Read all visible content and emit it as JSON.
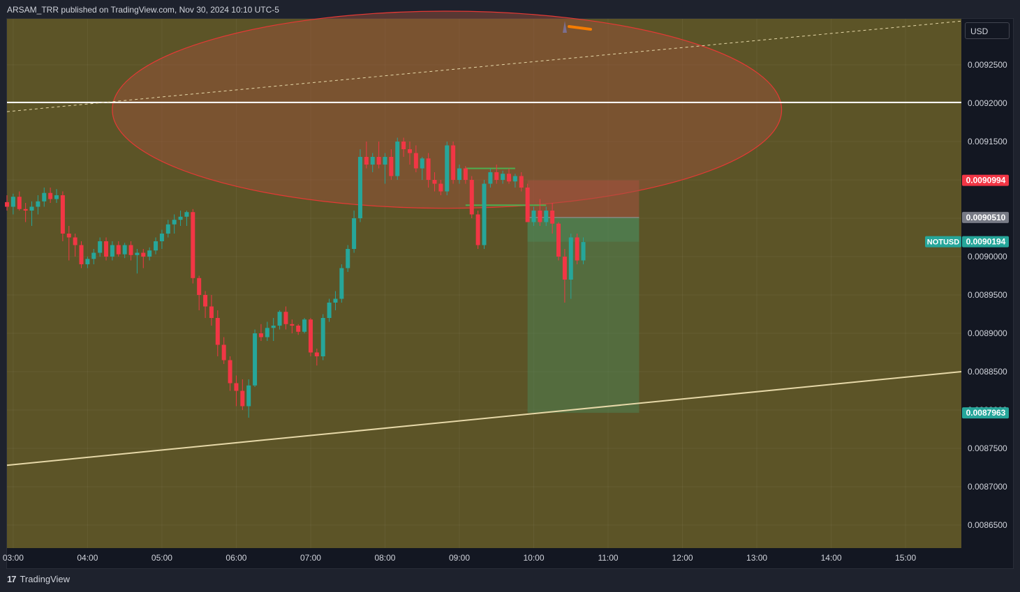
{
  "header": {
    "text": "ARSAM_TRR published on TradingView.com, Nov 30, 2024 10:10 UTC-5"
  },
  "footer": {
    "logo": "17",
    "brand": "TradingView"
  },
  "currency_button": {
    "label": "USD"
  },
  "colors": {
    "up": "#26a69a",
    "down": "#f23645",
    "background": "#5c5427",
    "ellipse_stroke": "#e53935",
    "ellipse_fill": "#a0523c",
    "horizontal_line": "#ffffff",
    "trendline": "#e6d8a8",
    "target_zone": "#4c8a5c",
    "stop_zone": "#a65040",
    "last_price_tag": "#26a69a",
    "stop_tag": "#f23645",
    "entry_tag": "#787b86",
    "arrow": "#f57c00"
  },
  "price_tags": {
    "stop": "0.0090994",
    "entry": "0.0090510",
    "symbol": "NOTUSD",
    "last": "0.0090194",
    "target": "0.0087963"
  },
  "chart_data": {
    "type": "candlestick",
    "symbol": "NOTUSD",
    "interval": "5m",
    "x_range": [
      "02:55",
      "15:45"
    ],
    "y_range": [
      0.00862,
      0.00931
    ],
    "x_ticks": [
      "03:00",
      "04:00",
      "05:00",
      "06:00",
      "07:00",
      "08:00",
      "09:00",
      "10:00",
      "11:00",
      "12:00",
      "13:00",
      "14:00",
      "15:00"
    ],
    "y_ticks": [
      "0.0086500",
      "0.0087000",
      "0.0087500",
      "0.0088000",
      "0.0088500",
      "0.0089000",
      "0.0089500",
      "0.0090000",
      "0.0090500",
      "0.0091000",
      "0.0091500",
      "0.0092000",
      "0.0092500"
    ],
    "candles": [
      {
        "t": "02:55",
        "o": 0.009071,
        "h": 0.00908,
        "l": 0.00906,
        "c": 0.009065
      },
      {
        "t": "03:00",
        "o": 0.009065,
        "h": 0.009082,
        "l": 0.009055,
        "c": 0.009078
      },
      {
        "t": "03:05",
        "o": 0.009078,
        "h": 0.009085,
        "l": 0.00906,
        "c": 0.009062
      },
      {
        "t": "03:10",
        "o": 0.009062,
        "h": 0.00907,
        "l": 0.009045,
        "c": 0.00906
      },
      {
        "t": "03:15",
        "o": 0.00906,
        "h": 0.009072,
        "l": 0.00904,
        "c": 0.009065
      },
      {
        "t": "03:20",
        "o": 0.009065,
        "h": 0.00908,
        "l": 0.009055,
        "c": 0.009072
      },
      {
        "t": "03:25",
        "o": 0.009072,
        "h": 0.00909,
        "l": 0.009065,
        "c": 0.009083
      },
      {
        "t": "03:30",
        "o": 0.009083,
        "h": 0.00909,
        "l": 0.00907,
        "c": 0.009075
      },
      {
        "t": "03:35",
        "o": 0.009075,
        "h": 0.009088,
        "l": 0.00907,
        "c": 0.00908
      },
      {
        "t": "03:40",
        "o": 0.00908,
        "h": 0.009085,
        "l": 0.00902,
        "c": 0.00903
      },
      {
        "t": "03:45",
        "o": 0.00903,
        "h": 0.00904,
        "l": 0.008995,
        "c": 0.009025
      },
      {
        "t": "03:50",
        "o": 0.009025,
        "h": 0.00903,
        "l": 0.009,
        "c": 0.009015
      },
      {
        "t": "03:55",
        "o": 0.009015,
        "h": 0.00902,
        "l": 0.008985,
        "c": 0.00899
      },
      {
        "t": "04:00",
        "o": 0.00899,
        "h": 0.009,
        "l": 0.008985,
        "c": 0.008997
      },
      {
        "t": "04:05",
        "o": 0.008997,
        "h": 0.00901,
        "l": 0.00899,
        "c": 0.009005
      },
      {
        "t": "04:10",
        "o": 0.009005,
        "h": 0.009025,
        "l": 0.009,
        "c": 0.00902
      },
      {
        "t": "04:15",
        "o": 0.00902,
        "h": 0.009025,
        "l": 0.008995,
        "c": 0.009
      },
      {
        "t": "04:20",
        "o": 0.009,
        "h": 0.00902,
        "l": 0.008995,
        "c": 0.009015
      },
      {
        "t": "04:25",
        "o": 0.009015,
        "h": 0.00902,
        "l": 0.009,
        "c": 0.009003
      },
      {
        "t": "04:30",
        "o": 0.009003,
        "h": 0.009018,
        "l": 0.008998,
        "c": 0.009015
      },
      {
        "t": "04:35",
        "o": 0.009015,
        "h": 0.00902,
        "l": 0.008995,
        "c": 0.009002
      },
      {
        "t": "04:40",
        "o": 0.009002,
        "h": 0.00901,
        "l": 0.008978,
        "c": 0.009005
      },
      {
        "t": "04:45",
        "o": 0.009005,
        "h": 0.00901,
        "l": 0.008985,
        "c": 0.009
      },
      {
        "t": "04:50",
        "o": 0.009,
        "h": 0.009012,
        "l": 0.008995,
        "c": 0.009008
      },
      {
        "t": "04:55",
        "o": 0.009008,
        "h": 0.009025,
        "l": 0.009003,
        "c": 0.00902
      },
      {
        "t": "05:00",
        "o": 0.00902,
        "h": 0.009035,
        "l": 0.00901,
        "c": 0.00903
      },
      {
        "t": "05:05",
        "o": 0.00903,
        "h": 0.009048,
        "l": 0.009025,
        "c": 0.009042
      },
      {
        "t": "05:10",
        "o": 0.009042,
        "h": 0.009055,
        "l": 0.00903,
        "c": 0.009048
      },
      {
        "t": "05:15",
        "o": 0.009048,
        "h": 0.00906,
        "l": 0.00904,
        "c": 0.009052
      },
      {
        "t": "05:20",
        "o": 0.009052,
        "h": 0.00906,
        "l": 0.00904,
        "c": 0.009058
      },
      {
        "t": "05:25",
        "o": 0.009058,
        "h": 0.009062,
        "l": 0.008965,
        "c": 0.008972
      },
      {
        "t": "05:30",
        "o": 0.008972,
        "h": 0.008975,
        "l": 0.00893,
        "c": 0.00895
      },
      {
        "t": "05:35",
        "o": 0.00895,
        "h": 0.008955,
        "l": 0.00892,
        "c": 0.008935
      },
      {
        "t": "05:40",
        "o": 0.008935,
        "h": 0.00895,
        "l": 0.00891,
        "c": 0.00892
      },
      {
        "t": "05:45",
        "o": 0.00892,
        "h": 0.00893,
        "l": 0.00887,
        "c": 0.008885
      },
      {
        "t": "05:50",
        "o": 0.008885,
        "h": 0.008895,
        "l": 0.00886,
        "c": 0.008865
      },
      {
        "t": "05:55",
        "o": 0.008865,
        "h": 0.00887,
        "l": 0.008825,
        "c": 0.008835
      },
      {
        "t": "06:00",
        "o": 0.008835,
        "h": 0.008845,
        "l": 0.008805,
        "c": 0.008825
      },
      {
        "t": "06:05",
        "o": 0.008825,
        "h": 0.00884,
        "l": 0.0088,
        "c": 0.008805
      },
      {
        "t": "06:10",
        "o": 0.008805,
        "h": 0.00884,
        "l": 0.00879,
        "c": 0.008832
      },
      {
        "t": "06:15",
        "o": 0.008832,
        "h": 0.008905,
        "l": 0.00883,
        "c": 0.0089
      },
      {
        "t": "06:20",
        "o": 0.0089,
        "h": 0.008912,
        "l": 0.00889,
        "c": 0.008895
      },
      {
        "t": "06:25",
        "o": 0.008895,
        "h": 0.008915,
        "l": 0.00889,
        "c": 0.008907
      },
      {
        "t": "06:30",
        "o": 0.008907,
        "h": 0.00892,
        "l": 0.00889,
        "c": 0.00891
      },
      {
        "t": "06:35",
        "o": 0.00891,
        "h": 0.00893,
        "l": 0.008905,
        "c": 0.008928
      },
      {
        "t": "06:40",
        "o": 0.008928,
        "h": 0.008935,
        "l": 0.008905,
        "c": 0.008912
      },
      {
        "t": "06:45",
        "o": 0.008912,
        "h": 0.008918,
        "l": 0.0089,
        "c": 0.00891
      },
      {
        "t": "06:50",
        "o": 0.00891,
        "h": 0.008912,
        "l": 0.008898,
        "c": 0.008902
      },
      {
        "t": "06:55",
        "o": 0.008902,
        "h": 0.00892,
        "l": 0.0089,
        "c": 0.008918
      },
      {
        "t": "07:00",
        "o": 0.008918,
        "h": 0.00892,
        "l": 0.00887,
        "c": 0.008875
      },
      {
        "t": "07:05",
        "o": 0.008875,
        "h": 0.00888,
        "l": 0.008858,
        "c": 0.00887
      },
      {
        "t": "07:10",
        "o": 0.00887,
        "h": 0.008925,
        "l": 0.008865,
        "c": 0.00892
      },
      {
        "t": "07:15",
        "o": 0.00892,
        "h": 0.008945,
        "l": 0.008915,
        "c": 0.00894
      },
      {
        "t": "07:20",
        "o": 0.00894,
        "h": 0.008955,
        "l": 0.00893,
        "c": 0.008945
      },
      {
        "t": "07:25",
        "o": 0.008945,
        "h": 0.00899,
        "l": 0.00894,
        "c": 0.008985
      },
      {
        "t": "07:30",
        "o": 0.008985,
        "h": 0.009015,
        "l": 0.00898,
        "c": 0.00901
      },
      {
        "t": "07:35",
        "o": 0.00901,
        "h": 0.00906,
        "l": 0.009005,
        "c": 0.00905
      },
      {
        "t": "07:40",
        "o": 0.00905,
        "h": 0.00914,
        "l": 0.009045,
        "c": 0.00913
      },
      {
        "t": "07:45",
        "o": 0.00913,
        "h": 0.00915,
        "l": 0.009115,
        "c": 0.00912
      },
      {
        "t": "07:50",
        "o": 0.00912,
        "h": 0.009135,
        "l": 0.00911,
        "c": 0.00913
      },
      {
        "t": "07:55",
        "o": 0.00913,
        "h": 0.00915,
        "l": 0.009115,
        "c": 0.00912
      },
      {
        "t": "08:00",
        "o": 0.00912,
        "h": 0.009135,
        "l": 0.009095,
        "c": 0.00913
      },
      {
        "t": "08:05",
        "o": 0.00913,
        "h": 0.00914,
        "l": 0.0091,
        "c": 0.009105
      },
      {
        "t": "08:10",
        "o": 0.009105,
        "h": 0.009155,
        "l": 0.0091,
        "c": 0.00915
      },
      {
        "t": "08:15",
        "o": 0.00915,
        "h": 0.009155,
        "l": 0.00913,
        "c": 0.00914
      },
      {
        "t": "08:20",
        "o": 0.00914,
        "h": 0.00915,
        "l": 0.00912,
        "c": 0.009135
      },
      {
        "t": "08:25",
        "o": 0.009135,
        "h": 0.009145,
        "l": 0.00911,
        "c": 0.009115
      },
      {
        "t": "08:30",
        "o": 0.009115,
        "h": 0.00913,
        "l": 0.0091,
        "c": 0.009128
      },
      {
        "t": "08:35",
        "o": 0.009128,
        "h": 0.009135,
        "l": 0.00909,
        "c": 0.0091
      },
      {
        "t": "08:40",
        "o": 0.0091,
        "h": 0.00911,
        "l": 0.009085,
        "c": 0.009095
      },
      {
        "t": "08:45",
        "o": 0.009095,
        "h": 0.0091,
        "l": 0.00908,
        "c": 0.009085
      },
      {
        "t": "08:50",
        "o": 0.009085,
        "h": 0.00915,
        "l": 0.00908,
        "c": 0.009145
      },
      {
        "t": "08:55",
        "o": 0.009145,
        "h": 0.00915,
        "l": 0.009095,
        "c": 0.0091
      },
      {
        "t": "09:00",
        "o": 0.0091,
        "h": 0.00912,
        "l": 0.009095,
        "c": 0.009115
      },
      {
        "t": "09:05",
        "o": 0.009115,
        "h": 0.009118,
        "l": 0.009095,
        "c": 0.0091
      },
      {
        "t": "09:10",
        "o": 0.0091,
        "h": 0.009105,
        "l": 0.00905,
        "c": 0.009055
      },
      {
        "t": "09:15",
        "o": 0.009055,
        "h": 0.00906,
        "l": 0.00901,
        "c": 0.009015
      },
      {
        "t": "09:20",
        "o": 0.009015,
        "h": 0.0091,
        "l": 0.00901,
        "c": 0.009095
      },
      {
        "t": "09:25",
        "o": 0.009095,
        "h": 0.009115,
        "l": 0.00909,
        "c": 0.00911
      },
      {
        "t": "09:30",
        "o": 0.00911,
        "h": 0.00912,
        "l": 0.009095,
        "c": 0.0091
      },
      {
        "t": "09:35",
        "o": 0.0091,
        "h": 0.009112,
        "l": 0.009095,
        "c": 0.009108
      },
      {
        "t": "09:40",
        "o": 0.009108,
        "h": 0.009115,
        "l": 0.009095,
        "c": 0.009098
      },
      {
        "t": "09:45",
        "o": 0.009098,
        "h": 0.009108,
        "l": 0.00909,
        "c": 0.009105
      },
      {
        "t": "09:50",
        "o": 0.009105,
        "h": 0.00911,
        "l": 0.009085,
        "c": 0.00909
      },
      {
        "t": "09:55",
        "o": 0.00909,
        "h": 0.009095,
        "l": 0.009045,
        "c": 0.009045
      },
      {
        "t": "10:00",
        "o": 0.009045,
        "h": 0.009065,
        "l": 0.00904,
        "c": 0.00906
      },
      {
        "t": "10:05",
        "o": 0.00906,
        "h": 0.009075,
        "l": 0.00904,
        "c": 0.009045
      },
      {
        "t": "10:10",
        "o": 0.009045,
        "h": 0.009065,
        "l": 0.00904,
        "c": 0.00906
      },
      {
        "t": "10:15",
        "o": 0.00906,
        "h": 0.00907,
        "l": 0.00903,
        "c": 0.009043
      },
      {
        "t": "10:20",
        "o": 0.009043,
        "h": 0.009045,
        "l": 0.008995,
        "c": 0.009
      },
      {
        "t": "10:25",
        "o": 0.009,
        "h": 0.00901,
        "l": 0.00894,
        "c": 0.00897
      },
      {
        "t": "10:30",
        "o": 0.00897,
        "h": 0.00903,
        "l": 0.008945,
        "c": 0.009025
      },
      {
        "t": "10:35",
        "o": 0.009025,
        "h": 0.00903,
        "l": 0.00899,
        "c": 0.008995
      },
      {
        "t": "10:40",
        "o": 0.008995,
        "h": 0.009025,
        "l": 0.00899,
        "c": 0.009019
      }
    ],
    "annotations": {
      "horizontal_line": 0.009201,
      "ellipse": {
        "t_start": "04:20",
        "t_end": "13:20",
        "p_top": 0.00932,
        "p_bottom": 0.009063
      },
      "ascending_trendline": [
        {
          "t": "02:55",
          "p": 0.008728
        },
        {
          "t": "15:45",
          "p": 0.00885
        }
      ],
      "dashed_trendline": [
        {
          "t": "02:55",
          "p": 0.009189
        },
        {
          "t": "15:45",
          "p": 0.009307
        }
      ],
      "position": {
        "t_start": "09:55",
        "t_end": "11:25",
        "entry": 0.009051,
        "stop": 0.0090994,
        "target": 0.0087963,
        "current": 0.0090194
      },
      "support_levels": [
        {
          "t_start": "09:05",
          "t_end": "09:45",
          "p": 0.009115
        },
        {
          "t_start": "09:05",
          "t_end": "10:10",
          "p": 0.009067
        }
      ]
    }
  }
}
